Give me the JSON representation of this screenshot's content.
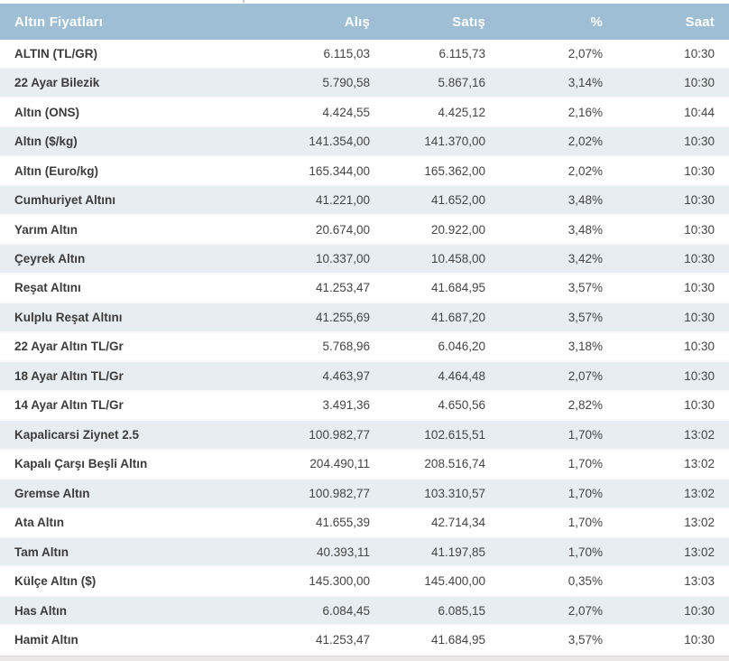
{
  "table": {
    "columns": [
      {
        "key": "name",
        "label": "Altın Fiyatları"
      },
      {
        "key": "buy",
        "label": "Alış"
      },
      {
        "key": "sell",
        "label": "Satış"
      },
      {
        "key": "change",
        "label": "%"
      },
      {
        "key": "time",
        "label": "Saat"
      }
    ],
    "rows": [
      {
        "name": "ALTIN (TL/GR)",
        "buy": "6.115,03",
        "sell": "6.115,73",
        "change": "2,07%",
        "time": "10:30"
      },
      {
        "name": "22 Ayar Bilezik",
        "buy": "5.790,58",
        "sell": "5.867,16",
        "change": "3,14%",
        "time": "10:30"
      },
      {
        "name": "Altın (ONS)",
        "buy": "4.424,55",
        "sell": "4.425,12",
        "change": "2,16%",
        "time": "10:44"
      },
      {
        "name": "Altın ($/kg)",
        "buy": "141.354,00",
        "sell": "141.370,00",
        "change": "2,02%",
        "time": "10:30"
      },
      {
        "name": "Altın (Euro/kg)",
        "buy": "165.344,00",
        "sell": "165.362,00",
        "change": "2,02%",
        "time": "10:30"
      },
      {
        "name": "Cumhuriyet Altını",
        "buy": "41.221,00",
        "sell": "41.652,00",
        "change": "3,48%",
        "time": "10:30"
      },
      {
        "name": "Yarım Altın",
        "buy": "20.674,00",
        "sell": "20.922,00",
        "change": "3,48%",
        "time": "10:30"
      },
      {
        "name": "Çeyrek Altın",
        "buy": "10.337,00",
        "sell": "10.458,00",
        "change": "3,42%",
        "time": "10:30"
      },
      {
        "name": "Reşat Altını",
        "buy": "41.253,47",
        "sell": "41.684,95",
        "change": "3,57%",
        "time": "10:30"
      },
      {
        "name": "Kulplu Reşat Altını",
        "buy": "41.255,69",
        "sell": "41.687,20",
        "change": "3,57%",
        "time": "10:30"
      },
      {
        "name": "22 Ayar Altın TL/Gr",
        "buy": "5.768,96",
        "sell": "6.046,20",
        "change": "3,18%",
        "time": "10:30"
      },
      {
        "name": "18 Ayar Altın TL/Gr",
        "buy": "4.463,97",
        "sell": "4.464,48",
        "change": "2,07%",
        "time": "10:30"
      },
      {
        "name": "14 Ayar Altın TL/Gr",
        "buy": "3.491,36",
        "sell": "4.650,56",
        "change": "2,82%",
        "time": "10:30"
      },
      {
        "name": "Kapalicarsi Ziynet 2.5",
        "buy": "100.982,77",
        "sell": "102.615,51",
        "change": "1,70%",
        "time": "13:02"
      },
      {
        "name": "Kapalı Çarşı Beşli Altın",
        "buy": "204.490,11",
        "sell": "208.516,74",
        "change": "1,70%",
        "time": "13:02"
      },
      {
        "name": "Gremse Altın",
        "buy": "100.982,77",
        "sell": "103.310,57",
        "change": "1,70%",
        "time": "13:02"
      },
      {
        "name": "Ata Altın",
        "buy": "41.655,39",
        "sell": "42.714,34",
        "change": "1,70%",
        "time": "13:02"
      },
      {
        "name": "Tam Altın",
        "buy": "40.393,11",
        "sell": "41.197,85",
        "change": "1,70%",
        "time": "13:02"
      },
      {
        "name": "Külçe Altın ($)",
        "buy": "145.300,00",
        "sell": "145.400,00",
        "change": "0,35%",
        "time": "13:03"
      },
      {
        "name": "Has Altın",
        "buy": "6.084,45",
        "sell": "6.085,15",
        "change": "2,07%",
        "time": "10:30"
      },
      {
        "name": "Hamit Altın",
        "buy": "41.253,47",
        "sell": "41.684,95",
        "change": "3,57%",
        "time": "10:30"
      }
    ]
  },
  "colors": {
    "header_bg": "#9dbed3",
    "header_text": "#ffffff",
    "alt_row_bg": "#e7edf1",
    "label_color": "#3c3c3c",
    "value_color": "#454545"
  }
}
